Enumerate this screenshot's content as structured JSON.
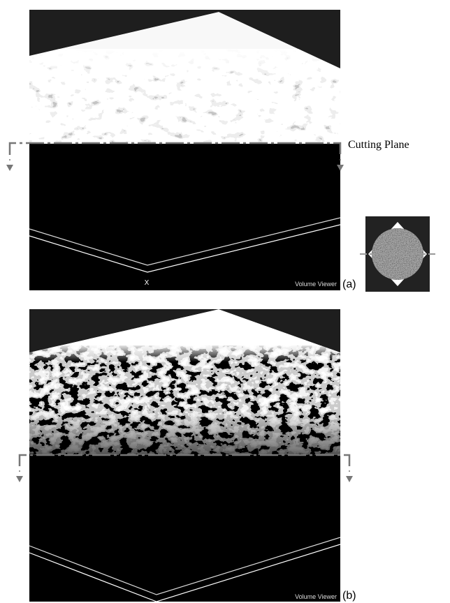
{
  "annotation": "Cutting Plane",
  "panels": [
    {
      "label": "(a)",
      "viewer_label": "Volume Viewer",
      "axis_label": "X"
    },
    {
      "label": "(b)",
      "viewer_label": "Volume Viewer"
    }
  ]
}
